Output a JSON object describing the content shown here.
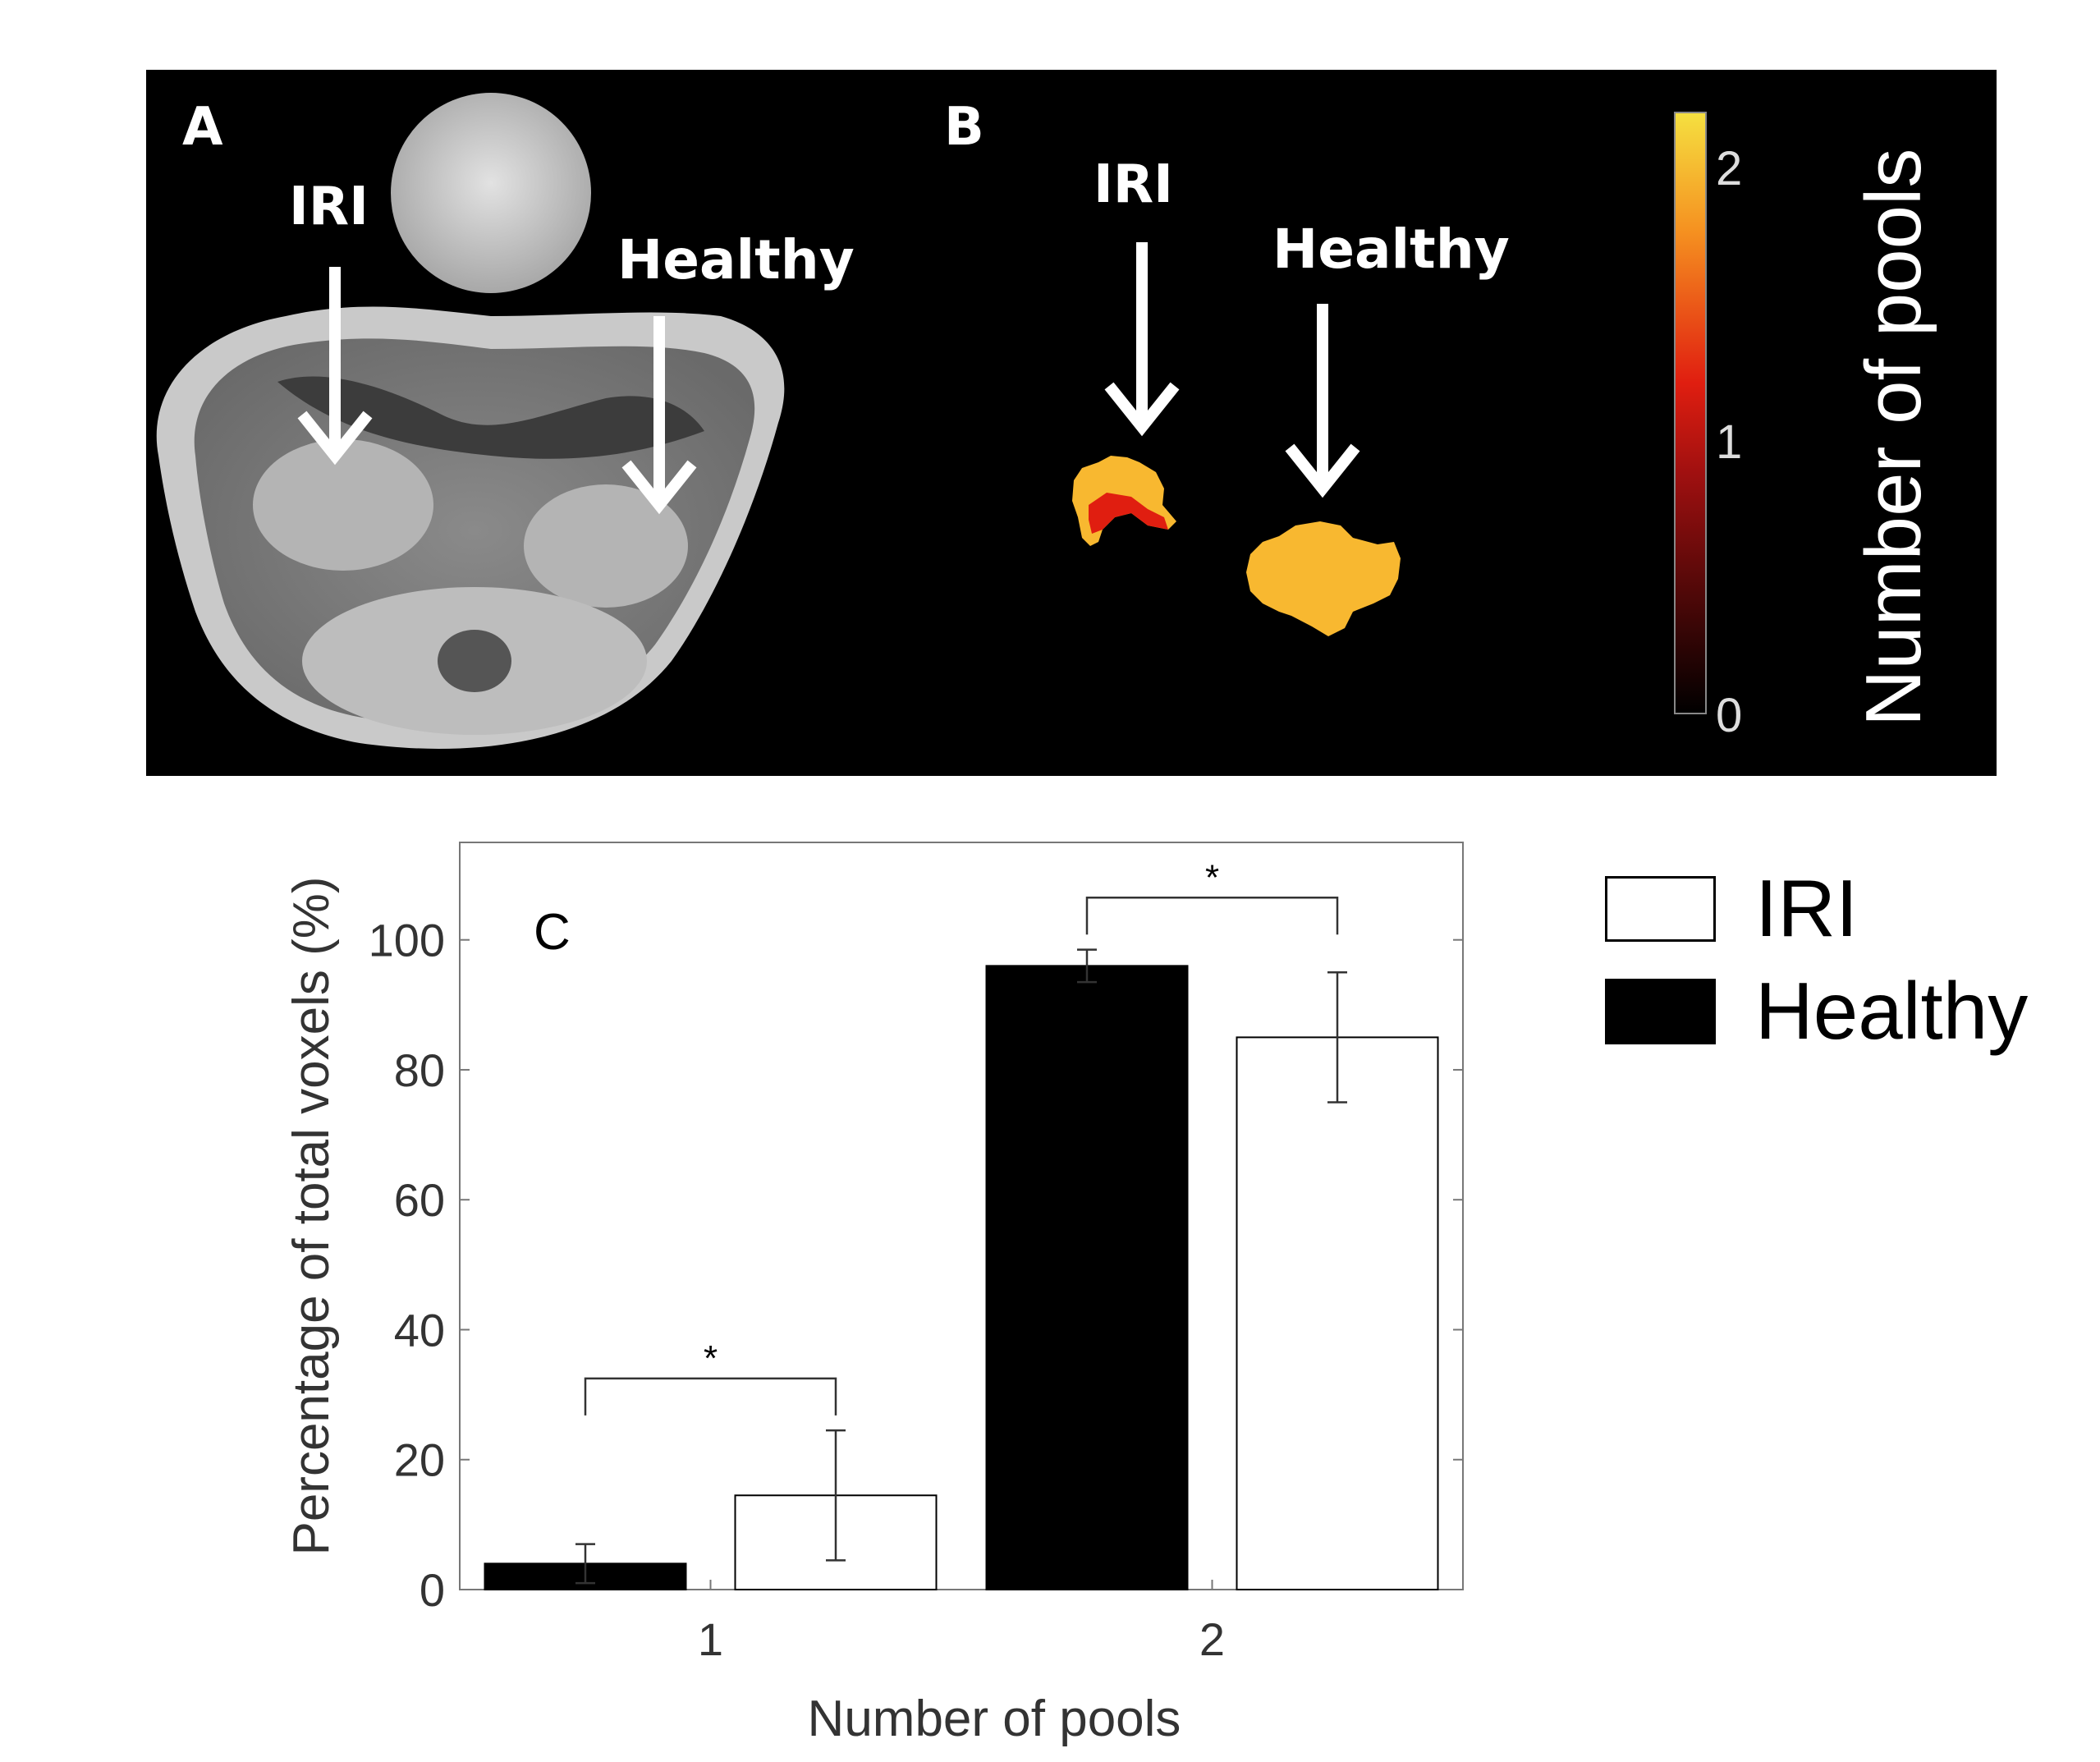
{
  "panels": {
    "a": {
      "letter": "A",
      "arrow_iri": "IRI",
      "arrow_healthy": "Healthy"
    },
    "b": {
      "letter": "B",
      "arrow_iri": "IRI",
      "arrow_healthy": "Healthy"
    },
    "colorbar": {
      "title": "Number of pools",
      "ticks": [
        "2",
        "1",
        "0"
      ],
      "colormap": "hot",
      "colors": {
        "high": "#f5d040",
        "mid": "#e01e10",
        "low": "#000000",
        "region_orange": "#f8b830"
      }
    }
  },
  "chart_data": {
    "type": "bar",
    "panel_letter": "C",
    "categories": [
      "1",
      "2"
    ],
    "series": [
      {
        "name": "Healthy",
        "color": "#000000",
        "values": [
          4,
          96
        ],
        "errors": [
          3,
          2.5
        ]
      },
      {
        "name": "IRI",
        "color": "#ffffff",
        "values": [
          14.5,
          85
        ],
        "errors": [
          10,
          10
        ]
      }
    ],
    "significance": [
      {
        "category": "1",
        "label": "*"
      },
      {
        "category": "2",
        "label": "*"
      }
    ],
    "xlabel": "Number of pools",
    "ylabel": "Percentage of total voxels (%)",
    "ylim": [
      0,
      115
    ],
    "yticks": [
      "0",
      "20",
      "40",
      "60",
      "80",
      "100"
    ],
    "grid": false,
    "legend": {
      "position": "right",
      "items": [
        "IRI",
        "Healthy"
      ]
    }
  }
}
